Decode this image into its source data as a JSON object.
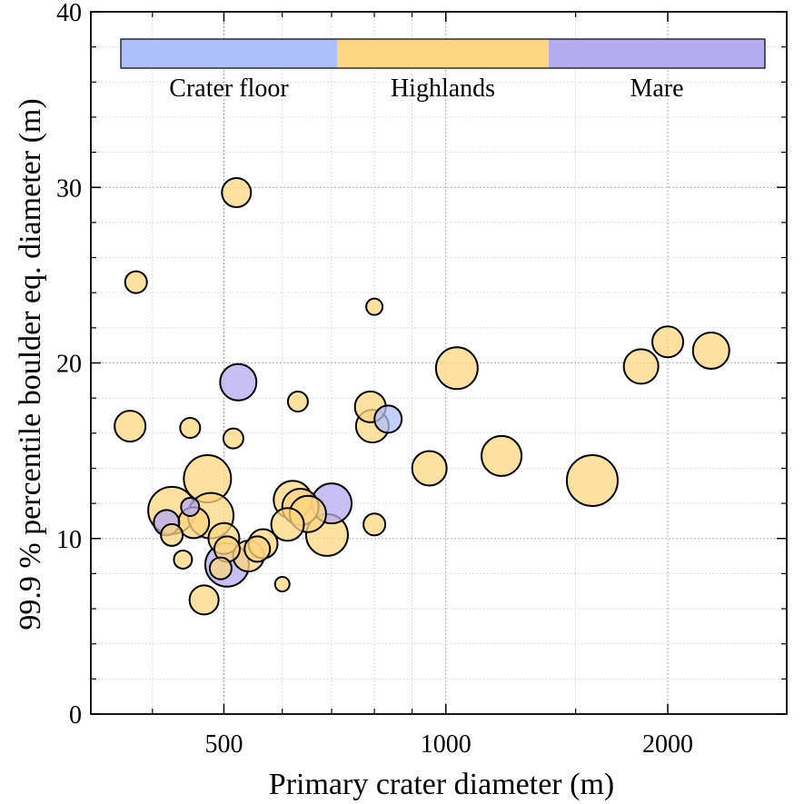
{
  "chart_data": {
    "type": "scatter",
    "xlabel": "Primary crater diameter (m)",
    "ylabel": "99.9 % percentile boulder eq. diameter (m)",
    "x_scale": "log",
    "xlim": [
      330,
      2900
    ],
    "ylim": [
      0,
      40
    ],
    "x_ticks": [
      500,
      1000,
      2000
    ],
    "y_ticks": [
      0,
      10,
      20,
      30,
      40
    ],
    "grid": true,
    "legend": {
      "placement": "top",
      "entries": [
        {
          "label": "Crater floor",
          "color": "#aec0f8"
        },
        {
          "label": "Highlands",
          "color": "#fed580"
        },
        {
          "label": "Mare",
          "color": "#b5abf0"
        }
      ]
    },
    "colors": {
      "Crater floor": "#aec0f8",
      "Highlands": "#fed580",
      "Mare": "#b5abf0"
    },
    "series": [
      {
        "name": "Highlands",
        "points": [
          {
            "x": 520,
            "y": 29.7,
            "r": 16
          },
          {
            "x": 380,
            "y": 24.6,
            "r": 12
          },
          {
            "x": 800,
            "y": 23.2,
            "r": 9
          },
          {
            "x": 373,
            "y": 16.4,
            "r": 17
          },
          {
            "x": 450,
            "y": 16.3,
            "r": 11
          },
          {
            "x": 515,
            "y": 15.7,
            "r": 11
          },
          {
            "x": 630,
            "y": 17.8,
            "r": 11
          },
          {
            "x": 790,
            "y": 17.5,
            "r": 17
          },
          {
            "x": 795,
            "y": 16.4,
            "r": 18
          },
          {
            "x": 1035,
            "y": 19.7,
            "r": 23
          },
          {
            "x": 950,
            "y": 14.0,
            "r": 19
          },
          {
            "x": 1190,
            "y": 14.7,
            "r": 22
          },
          {
            "x": 1840,
            "y": 19.8,
            "r": 19
          },
          {
            "x": 2000,
            "y": 21.2,
            "r": 17
          },
          {
            "x": 2290,
            "y": 20.7,
            "r": 20
          },
          {
            "x": 1580,
            "y": 13.3,
            "r": 28
          },
          {
            "x": 475,
            "y": 13.4,
            "r": 26
          },
          {
            "x": 425,
            "y": 11.6,
            "r": 26
          },
          {
            "x": 480,
            "y": 11.3,
            "r": 25
          },
          {
            "x": 455,
            "y": 10.9,
            "r": 17
          },
          {
            "x": 425,
            "y": 10.2,
            "r": 12
          },
          {
            "x": 440,
            "y": 8.8,
            "r": 10
          },
          {
            "x": 500,
            "y": 10.0,
            "r": 17
          },
          {
            "x": 540,
            "y": 9.0,
            "r": 17
          },
          {
            "x": 555,
            "y": 9.4,
            "r": 14
          },
          {
            "x": 565,
            "y": 9.7,
            "r": 16
          },
          {
            "x": 620,
            "y": 12.2,
            "r": 21
          },
          {
            "x": 635,
            "y": 11.8,
            "r": 20
          },
          {
            "x": 650,
            "y": 11.4,
            "r": 20
          },
          {
            "x": 610,
            "y": 10.8,
            "r": 18
          },
          {
            "x": 690,
            "y": 10.2,
            "r": 23
          },
          {
            "x": 470,
            "y": 6.5,
            "r": 16
          },
          {
            "x": 495,
            "y": 8.3,
            "r": 12
          },
          {
            "x": 600,
            "y": 7.4,
            "r": 8
          },
          {
            "x": 800,
            "y": 10.8,
            "r": 12
          },
          {
            "x": 505,
            "y": 9.4,
            "r": 14
          }
        ]
      },
      {
        "name": "Mare",
        "points": [
          {
            "x": 523,
            "y": 18.9,
            "r": 20
          },
          {
            "x": 700,
            "y": 12.0,
            "r": 22
          },
          {
            "x": 418,
            "y": 10.9,
            "r": 14
          },
          {
            "x": 505,
            "y": 8.5,
            "r": 24
          },
          {
            "x": 450,
            "y": 11.8,
            "r": 10
          }
        ]
      },
      {
        "name": "Crater floor",
        "points": [
          {
            "x": 835,
            "y": 16.8,
            "r": 15
          }
        ]
      }
    ]
  }
}
